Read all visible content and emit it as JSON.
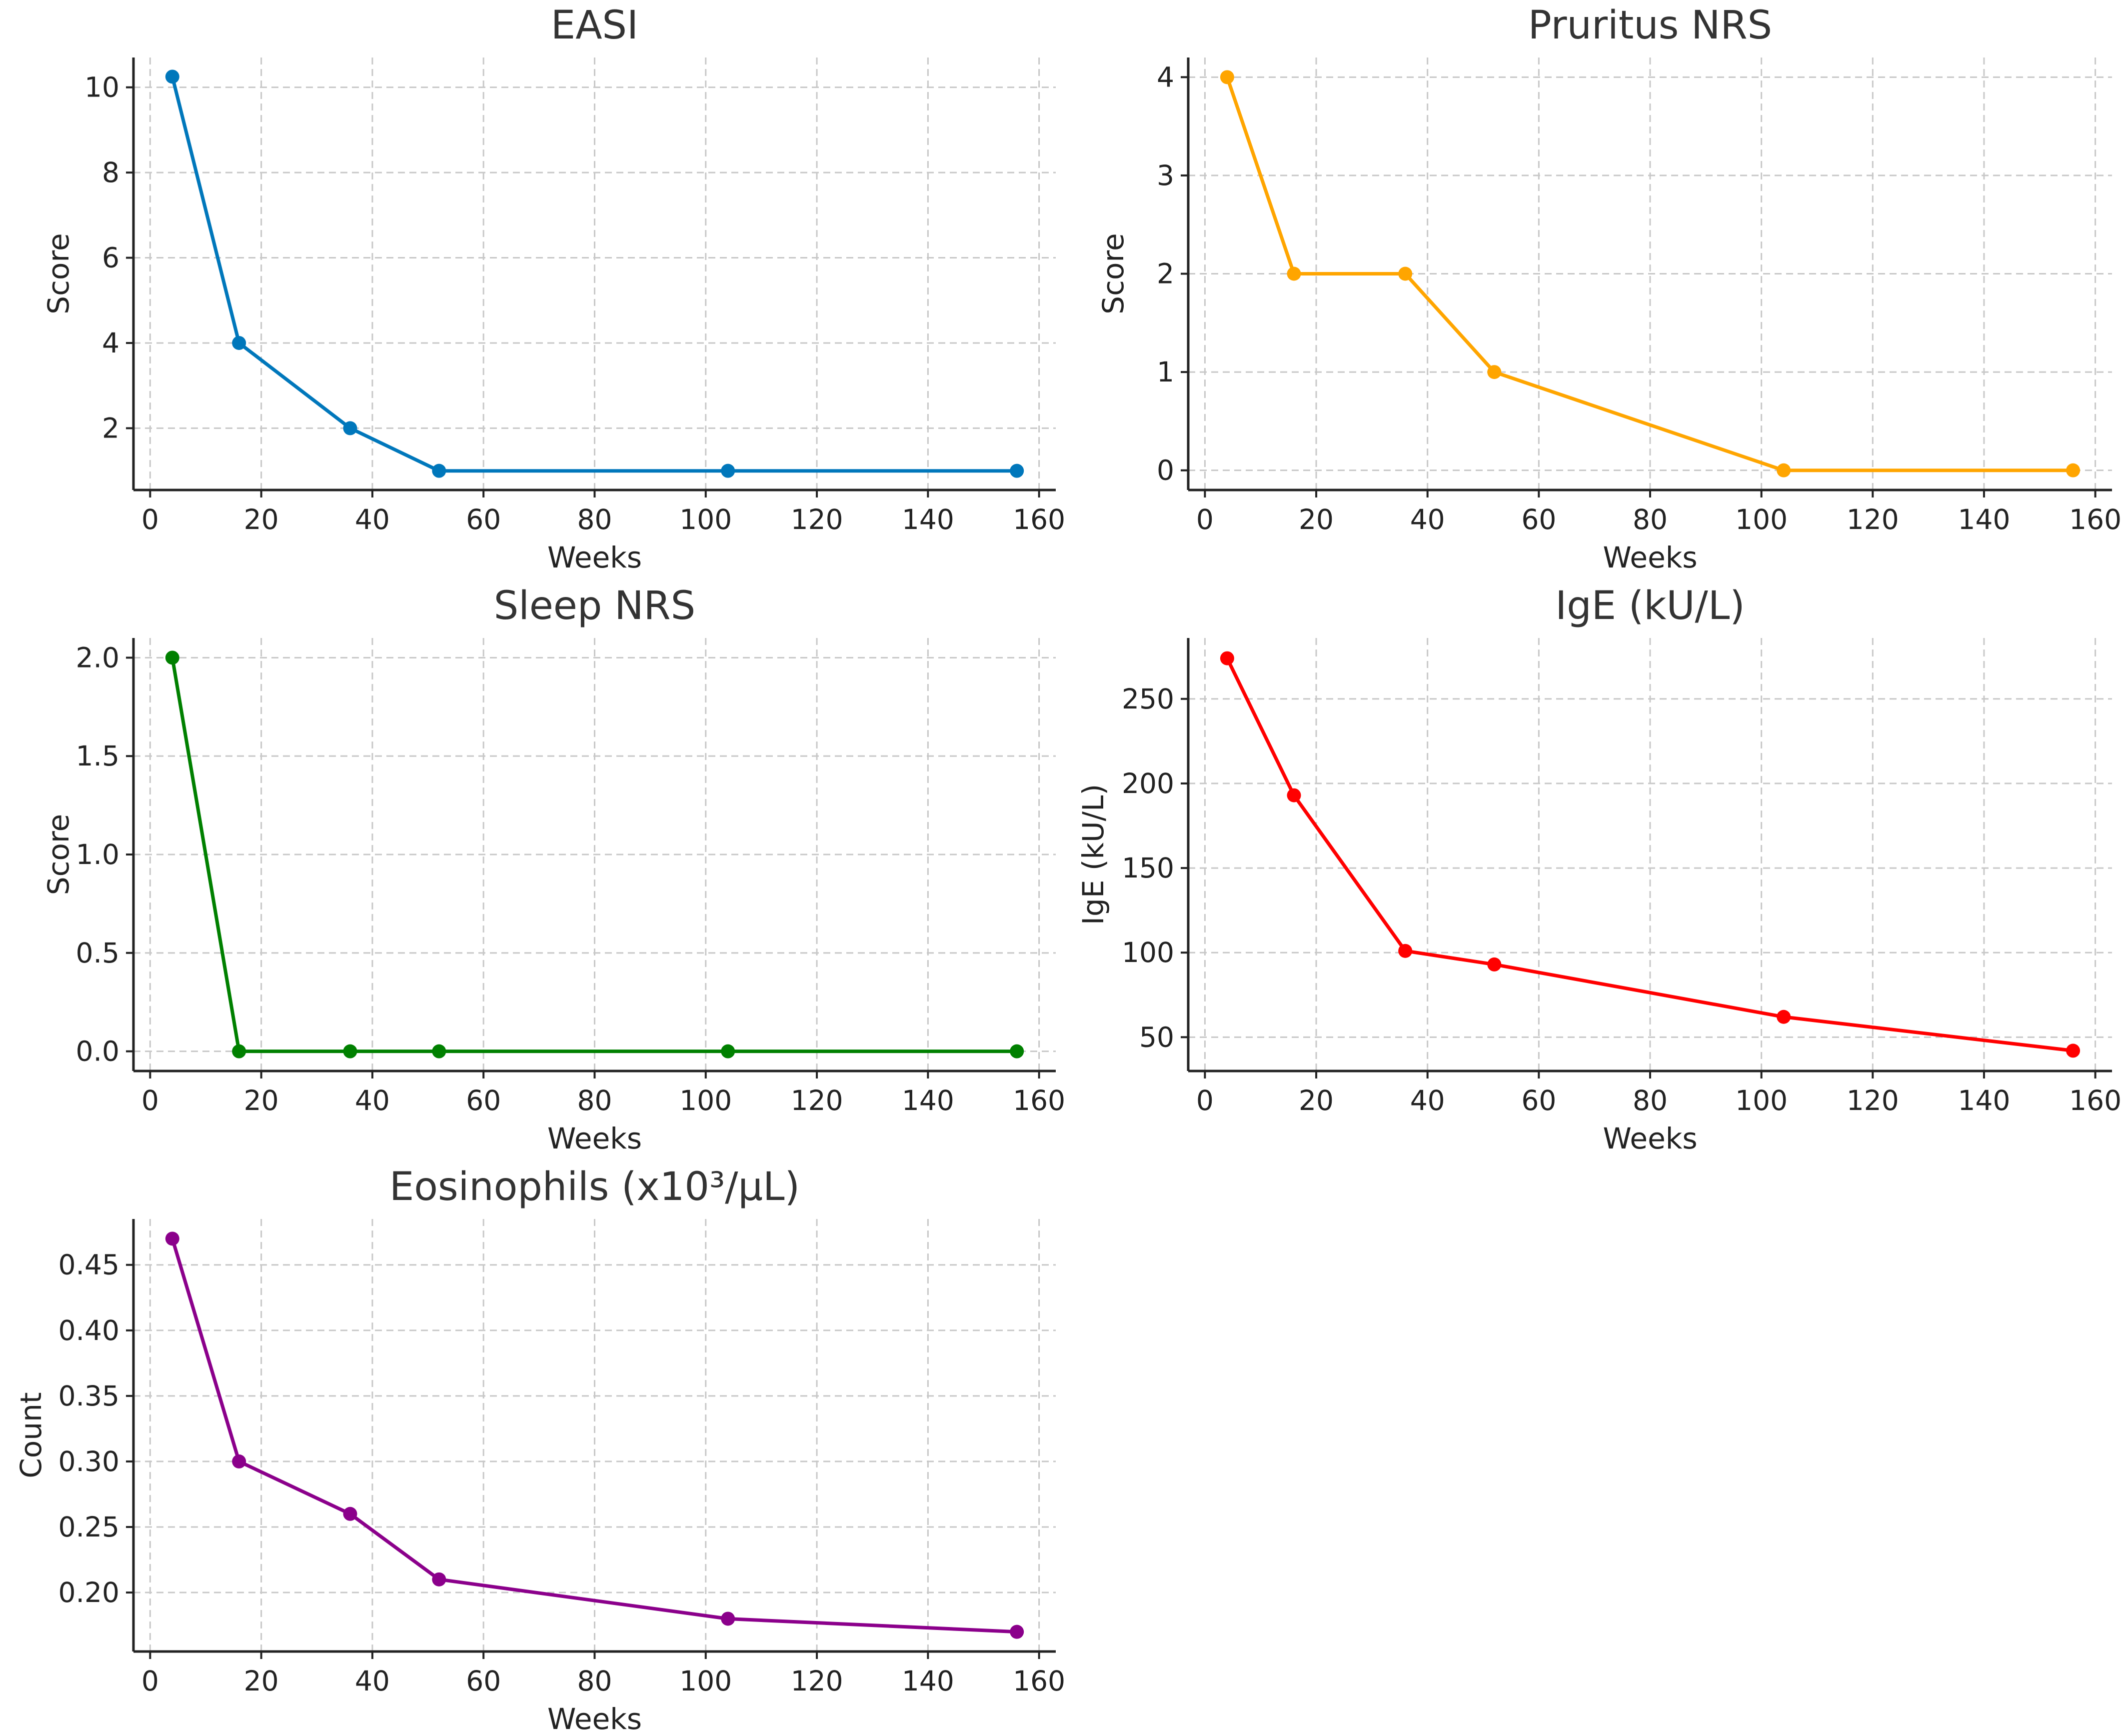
{
  "chart_data": [
    {
      "type": "line",
      "title": "EASI",
      "xlabel": "Weeks",
      "ylabel": "Score",
      "color": "#0077bb",
      "x": [
        4,
        16,
        36,
        52,
        104,
        156
      ],
      "y": [
        10.25,
        4,
        2,
        1,
        1,
        1
      ],
      "xlim": [
        -3,
        163
      ],
      "ylim": [
        0.55,
        10.7
      ],
      "xticks": [
        0,
        20,
        40,
        60,
        80,
        100,
        120,
        140,
        160
      ],
      "xtick_labels": [
        "0",
        "20",
        "40",
        "60",
        "80",
        "100",
        "120",
        "140",
        "160"
      ],
      "yticks": [
        2,
        4,
        6,
        8,
        10
      ],
      "ytick_labels": [
        "2",
        "4",
        "6",
        "8",
        "10"
      ],
      "grid": true
    },
    {
      "type": "line",
      "title": "Pruritus NRS",
      "xlabel": "Weeks",
      "ylabel": "Score",
      "color": "#ffa500",
      "x": [
        4,
        16,
        36,
        52,
        104,
        156
      ],
      "y": [
        4,
        2,
        2,
        1,
        0,
        0
      ],
      "xlim": [
        -3,
        163
      ],
      "ylim": [
        -0.2,
        4.2
      ],
      "xticks": [
        0,
        20,
        40,
        60,
        80,
        100,
        120,
        140,
        160
      ],
      "xtick_labels": [
        "0",
        "20",
        "40",
        "60",
        "80",
        "100",
        "120",
        "140",
        "160"
      ],
      "yticks": [
        0,
        1,
        2,
        3,
        4
      ],
      "ytick_labels": [
        "0",
        "1",
        "2",
        "3",
        "4"
      ],
      "grid": true
    },
    {
      "type": "line",
      "title": "Sleep NRS",
      "xlabel": "Weeks",
      "ylabel": "Score",
      "color": "#008000",
      "x": [
        4,
        16,
        36,
        52,
        104,
        156
      ],
      "y": [
        2,
        0,
        0,
        0,
        0,
        0
      ],
      "xlim": [
        -3,
        163
      ],
      "ylim": [
        -0.1,
        2.1
      ],
      "xticks": [
        0,
        20,
        40,
        60,
        80,
        100,
        120,
        140,
        160
      ],
      "xtick_labels": [
        "0",
        "20",
        "40",
        "60",
        "80",
        "100",
        "120",
        "140",
        "160"
      ],
      "yticks": [
        0,
        0.5,
        1,
        1.5,
        2
      ],
      "ytick_labels": [
        "0.0",
        "0.5",
        "1.0",
        "1.5",
        "2.0"
      ],
      "grid": true
    },
    {
      "type": "line",
      "title": "IgE (kU/L)",
      "xlabel": "Weeks",
      "ylabel": "IgE (kU/L)",
      "color": "#ff0000",
      "x": [
        4,
        16,
        36,
        52,
        104,
        156
      ],
      "y": [
        274,
        193,
        101,
        93,
        62,
        42
      ],
      "xlim": [
        -3,
        163
      ],
      "ylim": [
        30,
        286
      ],
      "xticks": [
        0,
        20,
        40,
        60,
        80,
        100,
        120,
        140,
        160
      ],
      "xtick_labels": [
        "0",
        "20",
        "40",
        "60",
        "80",
        "100",
        "120",
        "140",
        "160"
      ],
      "yticks": [
        50,
        100,
        150,
        200,
        250
      ],
      "ytick_labels": [
        "50",
        "100",
        "150",
        "200",
        "250"
      ],
      "grid": true
    },
    {
      "type": "line",
      "title": "Eosinophils (x10³/µL)",
      "xlabel": "Weeks",
      "ylabel": "Count",
      "color": "#8b008b",
      "x": [
        4,
        16,
        36,
        52,
        104,
        156
      ],
      "y": [
        0.47,
        0.3,
        0.26,
        0.21,
        0.18,
        0.17
      ],
      "xlim": [
        -3,
        163
      ],
      "ylim": [
        0.155,
        0.485
      ],
      "xticks": [
        0,
        20,
        40,
        60,
        80,
        100,
        120,
        140,
        160
      ],
      "xtick_labels": [
        "0",
        "20",
        "40",
        "60",
        "80",
        "100",
        "120",
        "140",
        "160"
      ],
      "yticks": [
        0.2,
        0.25,
        0.3,
        0.35,
        0.4,
        0.45
      ],
      "ytick_labels": [
        "0.20",
        "0.25",
        "0.30",
        "0.35",
        "0.40",
        "0.45"
      ],
      "grid": true
    }
  ]
}
